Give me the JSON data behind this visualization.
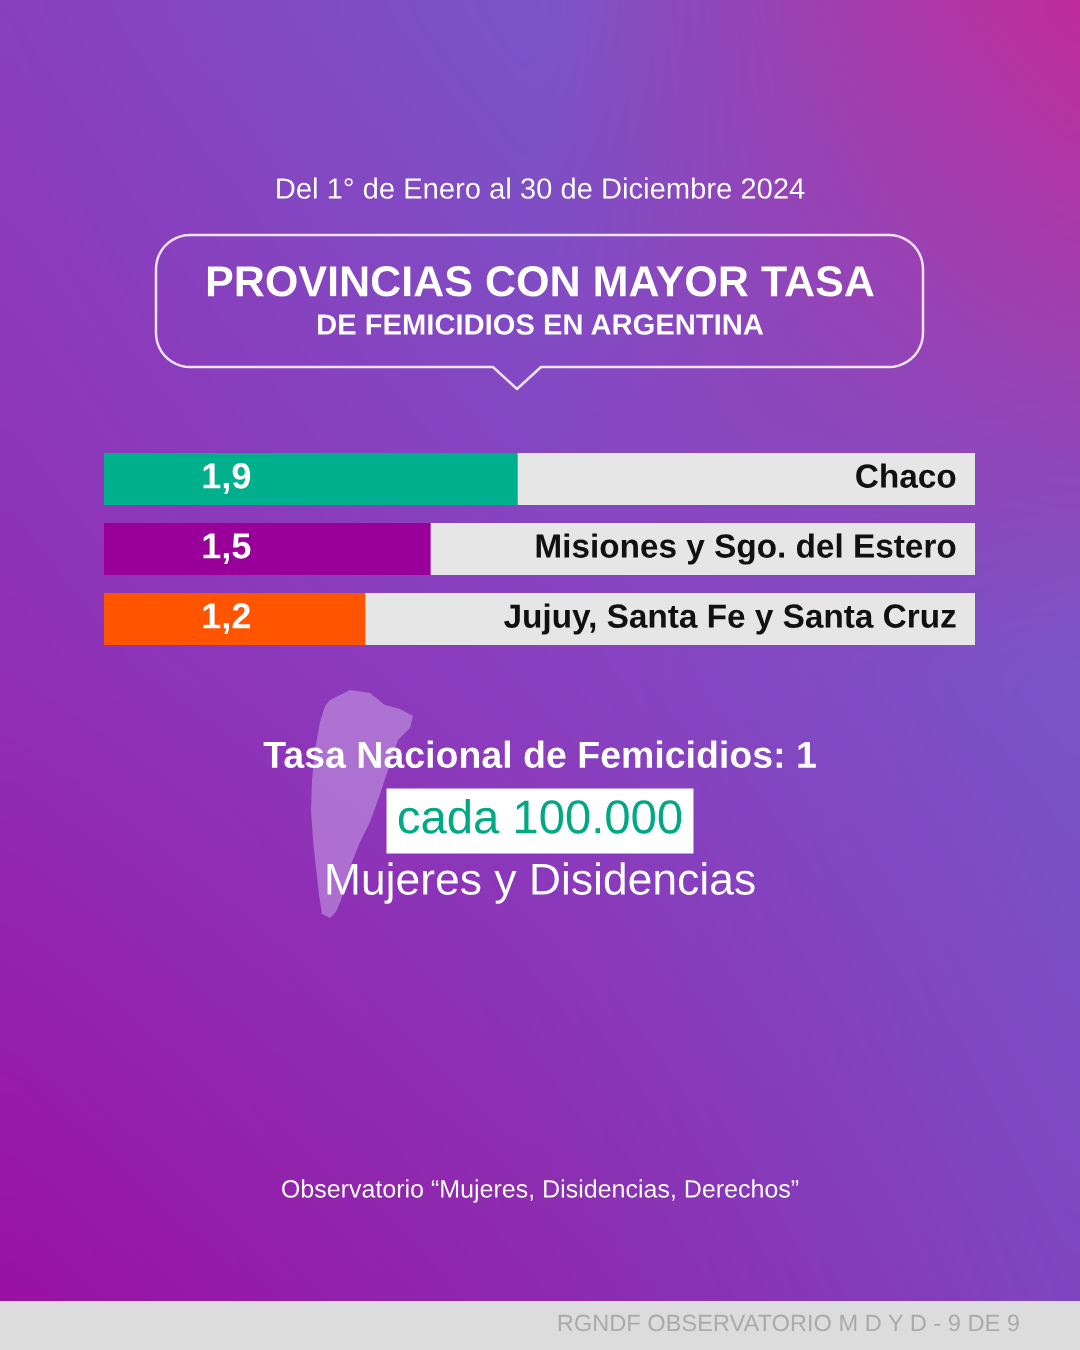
{
  "chart_data": {
    "type": "bar",
    "orientation": "horizontal",
    "subtitle": "Del 1° de Enero al 30 de Diciembre 2024",
    "title": "PROVINCIAS CON MAYOR TASA\nDE FEMICIDIOS EN ARGENTINA",
    "categories": [
      "Chaco",
      "Misiones y Sgo. del Estero",
      "Jujuy, Santa Fe y Santa Cruz"
    ],
    "values": [
      1.9,
      1.5,
      1.2
    ],
    "colors": [
      "#00b08c",
      "#990099",
      "#ff5500"
    ],
    "value_labels": [
      "1,9",
      "1,5",
      "1,2"
    ],
    "xlim": [
      0,
      4
    ],
    "tick_labels": "y",
    "annotations": [
      "Tasa Nacional de Femicidios: 1",
      "cada 100.000",
      "Mujeres y Disidencias",
      "Observatorio “Mujeres, Disidencias, Derechos”",
      "RGNDF OBSERVATORIO M D Y D - 9 DE 9"
    ]
  }
}
